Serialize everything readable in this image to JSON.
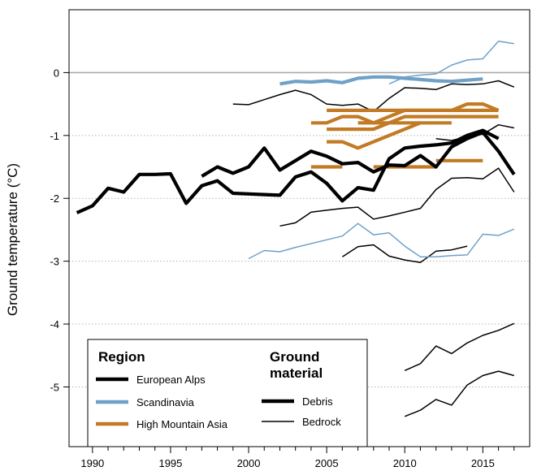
{
  "chart_data": {
    "type": "line",
    "xlabel": "",
    "ylabel": "Ground temperature (°C)",
    "xlim": [
      1988.5,
      2018
    ],
    "ylim": [
      -5.95,
      1.0
    ],
    "xticks": [
      1990,
      1995,
      2000,
      2005,
      2010,
      2015
    ],
    "yticks": [
      0,
      -1,
      -2,
      -3,
      -4,
      -5
    ],
    "grid": "horizontal dotted at y ticks",
    "reference_line": 0,
    "legend": {
      "placement": "bottom-left",
      "region_title": "Region",
      "material_title": "Ground material",
      "regions": [
        {
          "label": "European Alps",
          "color": "#000000"
        },
        {
          "label": "Scandinavia",
          "color": "#6fa0c8"
        },
        {
          "label": "High Mountain Asia",
          "color": "#c27a24"
        }
      ],
      "materials": [
        {
          "label": "Debris",
          "width": "thick"
        },
        {
          "label": "Bedrock",
          "width": "thin"
        }
      ]
    },
    "colors": {
      "European Alps": "#000000",
      "Scandinavia": "#6fa0c8",
      "High Mountain Asia": "#c27a24"
    },
    "series": [
      {
        "region": "European Alps",
        "material": "Debris",
        "x": [
          1989,
          1990,
          1991,
          1992,
          1993,
          1994,
          1995,
          1996,
          1997,
          1998,
          1999,
          2000,
          2001,
          2002,
          2003,
          2004,
          2005,
          2006,
          2007,
          2008,
          2009,
          2010,
          2011,
          2012,
          2013,
          2014,
          2015,
          2016
        ],
        "y": [
          -2.23,
          -2.12,
          -1.84,
          -1.9,
          -1.62,
          -1.62,
          -1.61,
          -2.08,
          -1.8,
          -1.72,
          -1.92,
          -1.93,
          -1.94,
          -1.95,
          -1.66,
          -1.58,
          -1.76,
          -2.04,
          -1.83,
          -1.87,
          -1.37,
          -1.2,
          -1.17,
          -1.15,
          -1.12,
          -1.0,
          -0.92,
          -1.05
        ]
      },
      {
        "region": "European Alps",
        "material": "Debris",
        "x": [
          1997,
          1998,
          1999,
          2000,
          2001,
          2002,
          2003,
          2004,
          2005,
          2006,
          2007,
          2008,
          2009,
          2010,
          2011,
          2012,
          2013,
          2014,
          2015,
          2016,
          2017
        ],
        "y": [
          -1.65,
          -1.5,
          -1.6,
          -1.5,
          -1.2,
          -1.55,
          -1.4,
          -1.25,
          -1.33,
          -1.45,
          -1.43,
          -1.58,
          -1.47,
          -1.48,
          -1.32,
          -1.5,
          -1.18,
          -1.05,
          -0.95,
          -1.25,
          -1.62
        ]
      },
      {
        "region": "European Alps",
        "material": "Bedrock",
        "x": [
          1999,
          2000,
          2001,
          2002,
          2003,
          2004,
          2005,
          2006,
          2007,
          2008,
          2009,
          2010,
          2011,
          2012,
          2013,
          2014,
          2015,
          2016,
          2017
        ],
        "y": [
          -0.5,
          -0.51,
          -0.43,
          -0.35,
          -0.28,
          -0.35,
          -0.5,
          -0.52,
          -0.5,
          -0.62,
          -0.41,
          -0.24,
          -0.25,
          -0.27,
          -0.18,
          -0.19,
          -0.18,
          -0.13,
          -0.23
        ]
      },
      {
        "region": "European Alps",
        "material": "Bedrock",
        "x": [
          2012,
          2013,
          2014,
          2015,
          2016,
          2017
        ],
        "y": [
          -1.05,
          -1.08,
          -1.02,
          -0.98,
          -0.83,
          -0.88
        ]
      },
      {
        "region": "European Alps",
        "material": "Bedrock",
        "x": [
          2002,
          2003,
          2004,
          2005,
          2006,
          2007,
          2008,
          2009,
          2010,
          2011,
          2012,
          2013,
          2014,
          2015,
          2016,
          2017
        ],
        "y": [
          -2.44,
          -2.39,
          -2.22,
          -2.19,
          -2.16,
          -2.14,
          -2.33,
          -2.28,
          -2.22,
          -2.16,
          -1.86,
          -1.68,
          -1.67,
          -1.69,
          -1.52,
          -1.9
        ]
      },
      {
        "region": "European Alps",
        "material": "Bedrock",
        "x": [
          2006,
          2007,
          2008,
          2009,
          2010,
          2011,
          2012,
          2013,
          2014
        ],
        "y": [
          -2.93,
          -2.77,
          -2.74,
          -2.92,
          -2.98,
          -3.02,
          -2.84,
          -2.82,
          -2.76
        ]
      },
      {
        "region": "European Alps",
        "material": "Bedrock",
        "x": [
          2010,
          2011,
          2012,
          2013,
          2014,
          2015,
          2016,
          2017
        ],
        "y": [
          -4.74,
          -4.63,
          -4.35,
          -4.47,
          -4.3,
          -4.18,
          -4.1,
          -3.99
        ]
      },
      {
        "region": "European Alps",
        "material": "Bedrock",
        "x": [
          2010,
          2011,
          2012,
          2013,
          2014,
          2015,
          2016,
          2017
        ],
        "y": [
          -5.47,
          -5.37,
          -5.2,
          -5.29,
          -4.97,
          -4.82,
          -4.75,
          -4.82
        ]
      },
      {
        "region": "Scandinavia",
        "material": "Debris",
        "x": [
          2002,
          2003,
          2004,
          2005,
          2006,
          2007,
          2008,
          2009,
          2010,
          2011,
          2012,
          2013,
          2014,
          2015
        ],
        "y": [
          -0.18,
          -0.14,
          -0.15,
          -0.13,
          -0.16,
          -0.09,
          -0.07,
          -0.07,
          -0.09,
          -0.11,
          -0.13,
          -0.14,
          -0.12,
          -0.1
        ]
      },
      {
        "region": "Scandinavia",
        "material": "Bedrock",
        "x": [
          2009,
          2010,
          2011,
          2012,
          2013,
          2014,
          2015,
          2016,
          2017
        ],
        "y": [
          -0.18,
          -0.07,
          -0.04,
          -0.02,
          0.12,
          0.2,
          0.22,
          0.5,
          0.46
        ]
      },
      {
        "region": "Scandinavia",
        "material": "Bedrock",
        "x": [
          2000,
          2001,
          2002,
          2003,
          2004,
          2005,
          2006,
          2007,
          2008,
          2009,
          2010,
          2011,
          2012,
          2013,
          2014,
          2015,
          2016,
          2017
        ],
        "y": [
          -2.96,
          -2.83,
          -2.85,
          -2.78,
          -2.72,
          -2.66,
          -2.6,
          -2.4,
          -2.58,
          -2.55,
          -2.76,
          -2.93,
          -2.93,
          -2.91,
          -2.9,
          -2.57,
          -2.59,
          -2.49
        ]
      },
      {
        "region": "High Mountain Asia",
        "material": "Debris",
        "x": [
          2004,
          2005,
          2006,
          2007,
          2008,
          2009,
          2010,
          2011,
          2012,
          2013,
          2014,
          2015,
          2016
        ],
        "y": [
          -0.8,
          -0.8,
          -0.7,
          -0.7,
          -0.8,
          -0.7,
          -0.6,
          -0.6,
          -0.6,
          -0.6,
          -0.5,
          -0.5,
          -0.6
        ]
      },
      {
        "region": "High Mountain Asia",
        "material": "Debris",
        "x": [
          2005,
          2006,
          2007,
          2008,
          2009,
          2010,
          2011,
          2012,
          2013,
          2014,
          2015,
          2016
        ],
        "y": [
          -0.6,
          -0.6,
          -0.6,
          -0.6,
          -0.6,
          -0.6,
          -0.6,
          -0.6,
          -0.6,
          -0.6,
          -0.6,
          -0.6
        ]
      },
      {
        "region": "High Mountain Asia",
        "material": "Debris",
        "x": [
          2005,
          2006,
          2007,
          2008,
          2009,
          2010,
          2011,
          2012,
          2013,
          2014,
          2015,
          2016
        ],
        "y": [
          -0.9,
          -0.9,
          -0.9,
          -0.9,
          -0.8,
          -0.7,
          -0.7,
          -0.7,
          -0.7,
          -0.7,
          -0.7,
          -0.7
        ]
      },
      {
        "region": "High Mountain Asia",
        "material": "Debris",
        "x": [
          2007,
          2008,
          2009,
          2010,
          2011,
          2012,
          2013
        ],
        "y": [
          -0.8,
          -0.8,
          -0.8,
          -0.8,
          -0.8,
          -0.8,
          -0.8
        ]
      },
      {
        "region": "High Mountain Asia",
        "material": "Debris",
        "x": [
          2005,
          2006,
          2007,
          2008,
          2009,
          2010,
          2011
        ],
        "y": [
          -1.1,
          -1.1,
          -1.2,
          -1.1,
          -1.0,
          -0.9,
          -0.8
        ]
      },
      {
        "region": "High Mountain Asia",
        "material": "Debris",
        "x": [
          2004,
          2005,
          2006
        ],
        "y": [
          -1.5,
          -1.5,
          -1.5
        ]
      },
      {
        "region": "High Mountain Asia",
        "material": "Debris",
        "x": [
          2008,
          2009,
          2010,
          2011,
          2012
        ],
        "y": [
          -1.5,
          -1.5,
          -1.5,
          -1.5,
          -1.5
        ]
      },
      {
        "region": "High Mountain Asia",
        "material": "Debris",
        "x": [
          2012,
          2013,
          2014,
          2015
        ],
        "y": [
          -1.4,
          -1.4,
          -1.4,
          -1.4
        ]
      }
    ]
  }
}
